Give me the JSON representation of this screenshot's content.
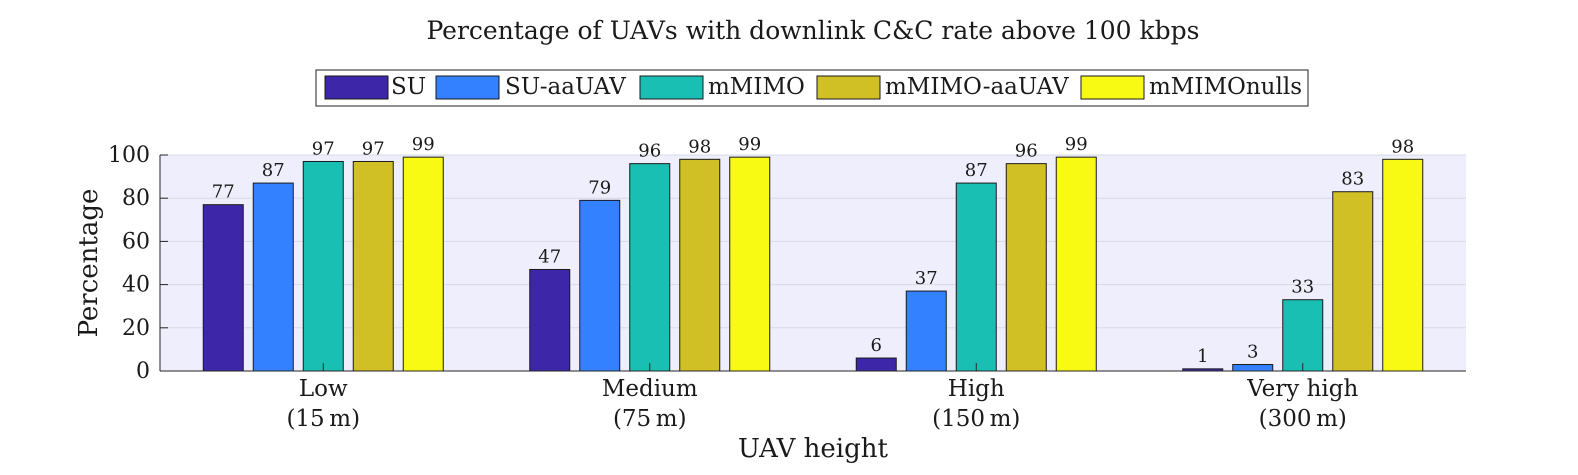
{
  "chart_data": {
    "type": "bar",
    "title": "Percentage of UAVs with downlink C&C rate above 100 kbps",
    "xlabel": "UAV height",
    "ylabel": "Percentage",
    "ylim": [
      0,
      100
    ],
    "yticks": [
      0,
      20,
      40,
      60,
      80,
      100
    ],
    "grid": true,
    "legend_position": "top-center",
    "categories": [
      {
        "line1": "Low",
        "line2": "(15 m)"
      },
      {
        "line1": "Medium",
        "line2": "(75 m)"
      },
      {
        "line1": "High",
        "line2": "(150 m)"
      },
      {
        "line1": "Very high",
        "line2": "(300 m)"
      }
    ],
    "series": [
      {
        "name": "SU",
        "color": "#3e26a8",
        "values": [
          77,
          47,
          6,
          1
        ]
      },
      {
        "name": "SU-aaUAV",
        "color": "#3381ff",
        "values": [
          87,
          79,
          37,
          3
        ]
      },
      {
        "name": "mMIMO",
        "color": "#1abfb4",
        "values": [
          97,
          96,
          87,
          33
        ]
      },
      {
        "name": "mMIMO-aaUAV",
        "color": "#d1bf26",
        "values": [
          97,
          98,
          96,
          83
        ]
      },
      {
        "name": "mMIMOnulls",
        "color": "#f9fa14",
        "values": [
          99,
          99,
          99,
          98
        ]
      }
    ]
  }
}
